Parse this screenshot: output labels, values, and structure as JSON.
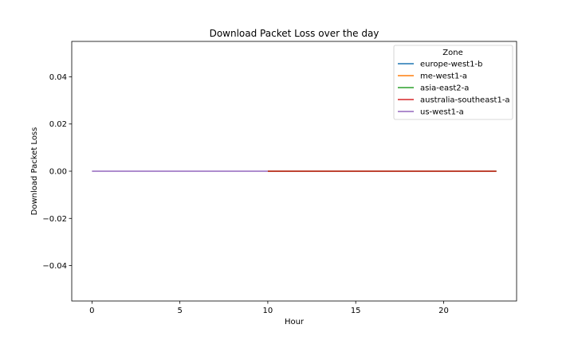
{
  "chart_data": {
    "type": "line",
    "title": "Download Packet Loss over the day",
    "xlabel": "Hour",
    "ylabel": "Download Packet Loss",
    "xlim": [
      -1.15,
      24.15
    ],
    "ylim": [
      -0.055,
      0.055
    ],
    "xticks": [
      0,
      5,
      10,
      15,
      20
    ],
    "yticks": [
      -0.04,
      -0.02,
      0.0,
      0.02,
      0.04
    ],
    "ytick_labels": [
      "−0.04",
      "−0.02",
      "0.00",
      "0.02",
      "0.04"
    ],
    "grid": false,
    "legend": {
      "title": "Zone",
      "position": "top-right"
    },
    "series": [
      {
        "name": "europe-west1-b",
        "color": "#1f77b4",
        "x": [
          10,
          11,
          12,
          13,
          14,
          15,
          16,
          17,
          18,
          19,
          20,
          21,
          22,
          23
        ],
        "y": [
          0,
          0,
          0,
          0,
          0,
          0,
          0,
          0,
          0,
          0,
          0,
          0,
          0,
          0
        ]
      },
      {
        "name": "me-west1-a",
        "color": "#ff7f0e",
        "x": [
          10,
          11,
          12,
          13,
          14,
          15,
          16,
          17,
          18,
          19,
          20,
          21,
          22,
          23
        ],
        "y": [
          0,
          0,
          0,
          0,
          0,
          0,
          0,
          0,
          0,
          0,
          0,
          0,
          0,
          0
        ]
      },
      {
        "name": "asia-east2-a",
        "color": "#2ca02c",
        "x": [
          10,
          11,
          12,
          13,
          14,
          15,
          16,
          17,
          18,
          19,
          20,
          21,
          22,
          23
        ],
        "y": [
          0,
          0,
          0,
          0,
          0,
          0,
          0,
          0,
          0,
          0,
          0,
          0,
          0,
          0
        ]
      },
      {
        "name": "australia-southeast1-a",
        "color": "#d62728",
        "x": [
          10,
          11,
          12,
          13,
          14,
          15,
          16,
          17,
          18,
          19,
          20,
          21,
          22,
          23
        ],
        "y": [
          0,
          0,
          0,
          0,
          0,
          0,
          0,
          0,
          0,
          0,
          0,
          0,
          0,
          0
        ]
      },
      {
        "name": "us-west1-a",
        "color": "#9467bd",
        "x": [
          0,
          1,
          2,
          3,
          4,
          5,
          6,
          7,
          8,
          9,
          10
        ],
        "y": [
          0,
          0,
          0,
          0,
          0,
          0,
          0,
          0,
          0,
          0,
          0
        ]
      }
    ]
  }
}
